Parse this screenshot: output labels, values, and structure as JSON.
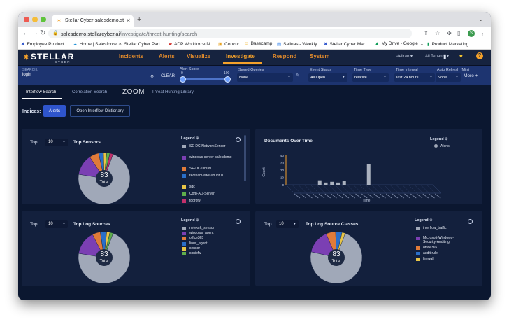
{
  "browser": {
    "tab_title": "Stellar Cyber-salesdemo.stella",
    "url_host": "salesdemo.stellarcyber.ai",
    "url_path": "/investigate/threat-hunting/search",
    "profile_initial": "S",
    "bookmarks": [
      "Employee Product...",
      "Home | Salesforce",
      "Stellar Cyber Part...",
      "ADP Workforce N...",
      "Concur",
      "Basecamp",
      "Salinas - Weekly...",
      "Stellar Cyber Mar...",
      "My Drive - Google ...",
      "Product Marketing..."
    ]
  },
  "app": {
    "logo_main": "STELLAR",
    "logo_sub": "CYBER",
    "nav": [
      "Incidents",
      "Alerts",
      "Visualize",
      "Investigate",
      "Respond",
      "System"
    ],
    "active_nav": "Investigate",
    "user": "stellrao ▾",
    "tenant": "All Tenants ▾"
  },
  "search": {
    "label": "SEARCH:",
    "value": "login",
    "clear": "CLEAR",
    "alert_score_label": "Alert Score",
    "alert_score_min": "0",
    "alert_score_max": "100",
    "saved_queries_label": "Saved Queries",
    "saved_queries_value": "None",
    "event_status_label": "Event Status",
    "event_status_value": "All Open",
    "time_type_label": "Time Type",
    "time_type_value": "relative",
    "time_interval_label": "Time Interval",
    "time_interval_value": "last 24 hours",
    "auto_refresh_label": "Auto Refresh (Min)",
    "auto_refresh_value": "None",
    "more": "More +"
  },
  "subtabs": [
    "Interflow Search",
    "Correlation Search",
    "ZOOM",
    "Threat Hunting Library"
  ],
  "indices": {
    "label": "Indices:",
    "alerts_btn": "Alerts",
    "dict_btn": "Open Interflow Dictionary"
  },
  "panels": {
    "sensors": {
      "top_label": "Top",
      "top_value": "10",
      "title": "Top Sensors",
      "legend_title": "Legend",
      "items": [
        {
          "label": "SE-DC-NetworkSensor",
          "color": "#a0a8b8"
        },
        {
          "label": "windows-server-salesdemo",
          "color": "#7b3fb3"
        },
        {
          "label": "SE-DC-Linux1",
          "color": "#e07b39"
        },
        {
          "label": "redteam-aws-ubuntu1",
          "color": "#2a6fc9"
        },
        {
          "label": "sdc",
          "color": "#e8c547"
        },
        {
          "label": "Corp-AD-Server",
          "color": "#5fae4b"
        },
        {
          "label": "toorof9",
          "color": "#c2306b"
        }
      ],
      "center_value": "83",
      "center_label": "Total",
      "slices": [
        {
          "value": 0.72,
          "color": "#a0a8b8"
        },
        {
          "value": 0.13,
          "color": "#7b3fb3"
        },
        {
          "value": 0.06,
          "color": "#e07b39"
        },
        {
          "value": 0.03,
          "color": "#2a6fc9"
        },
        {
          "value": 0.02,
          "color": "#e8c547"
        },
        {
          "value": 0.02,
          "color": "#5fae4b"
        },
        {
          "value": 0.02,
          "color": "#c2306b"
        }
      ]
    },
    "docs": {
      "title": "Documents Over Time",
      "legend_title": "Legend",
      "legend_item": "Alerts",
      "ylabel": "Count",
      "xlabel": "Time",
      "yticks": [
        "40",
        "30",
        "20",
        "10",
        "0"
      ]
    },
    "logsources": {
      "top_label": "Top",
      "top_value": "10",
      "title": "Top Log Sources",
      "legend_title": "Legend",
      "items": [
        {
          "label": "network_sensor",
          "color": "#a0a8b8"
        },
        {
          "label": "windows_agent",
          "color": "#7b3fb3"
        },
        {
          "label": "office365",
          "color": "#e07b39"
        },
        {
          "label": "linux_agent",
          "color": "#2a6fc9"
        },
        {
          "label": "sensor",
          "color": "#e8c547"
        },
        {
          "label": "sonicfw",
          "color": "#5fae4b"
        }
      ],
      "center_value": "83",
      "center_label": "Total",
      "slices": [
        {
          "value": 0.72,
          "color": "#a0a8b8"
        },
        {
          "value": 0.15,
          "color": "#7b3fb3"
        },
        {
          "value": 0.05,
          "color": "#e07b39"
        },
        {
          "value": 0.04,
          "color": "#2a6fc9"
        },
        {
          "value": 0.02,
          "color": "#e8c547"
        },
        {
          "value": 0.02,
          "color": "#5fae4b"
        }
      ]
    },
    "logclasses": {
      "top_label": "Top",
      "top_value": "10",
      "title": "Top Log Source Classes",
      "legend_title": "Legend",
      "items": [
        {
          "label": "interflow_traffic",
          "color": "#a0a8b8"
        },
        {
          "label": "Microsoft-Windows-Security-Auditing",
          "color": "#7b3fb3"
        },
        {
          "label": "office365",
          "color": "#e07b39"
        },
        {
          "label": "audit-rule",
          "color": "#2a6fc9"
        },
        {
          "label": "firewall",
          "color": "#e8c547"
        }
      ],
      "center_value": "83",
      "center_label": "Total",
      "slices": [
        {
          "value": 0.73,
          "color": "#a0a8b8"
        },
        {
          "value": 0.15,
          "color": "#7b3fb3"
        },
        {
          "value": 0.06,
          "color": "#e07b39"
        },
        {
          "value": 0.04,
          "color": "#2a6fc9"
        },
        {
          "value": 0.02,
          "color": "#e8c547"
        }
      ]
    }
  }
}
